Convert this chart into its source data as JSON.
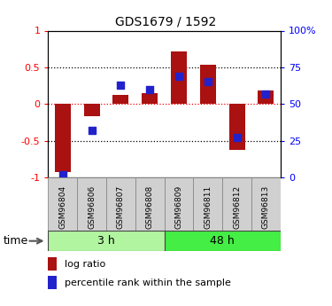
{
  "title": "GDS1679 / 1592",
  "samples": [
    "GSM96804",
    "GSM96806",
    "GSM96807",
    "GSM96808",
    "GSM96809",
    "GSM96811",
    "GSM96812",
    "GSM96813"
  ],
  "log_ratio": [
    -0.93,
    -0.17,
    0.13,
    0.15,
    0.72,
    0.53,
    -0.62,
    0.18
  ],
  "percentile_rank": [
    2,
    32,
    63,
    60,
    69,
    65,
    27,
    57
  ],
  "groups": [
    {
      "label": "3 h",
      "indices": [
        0,
        1,
        2,
        3
      ],
      "color": "#b2f5a0"
    },
    {
      "label": "48 h",
      "indices": [
        4,
        5,
        6,
        7
      ],
      "color": "#44ee44"
    }
  ],
  "bar_color": "#aa1111",
  "dot_color": "#2222cc",
  "ylim_left": [
    -1,
    1
  ],
  "ylim_right": [
    0,
    100
  ],
  "yticks_left": [
    -1,
    -0.5,
    0,
    0.5,
    1
  ],
  "ytick_labels_left": [
    "-1",
    "-0.5",
    "0",
    "0.5",
    "1"
  ],
  "yticks_right": [
    0,
    25,
    50,
    75,
    100
  ],
  "ytick_labels_right": [
    "0",
    "25",
    "50",
    "75",
    "100%"
  ],
  "hlines_black": [
    0.5,
    -0.5
  ],
  "hline_red": 0,
  "label_log": "log ratio",
  "label_pct": "percentile rank within the sample",
  "time_label": "time",
  "bar_width": 0.55,
  "dot_size": 35,
  "gray_box": "#d0d0d0"
}
